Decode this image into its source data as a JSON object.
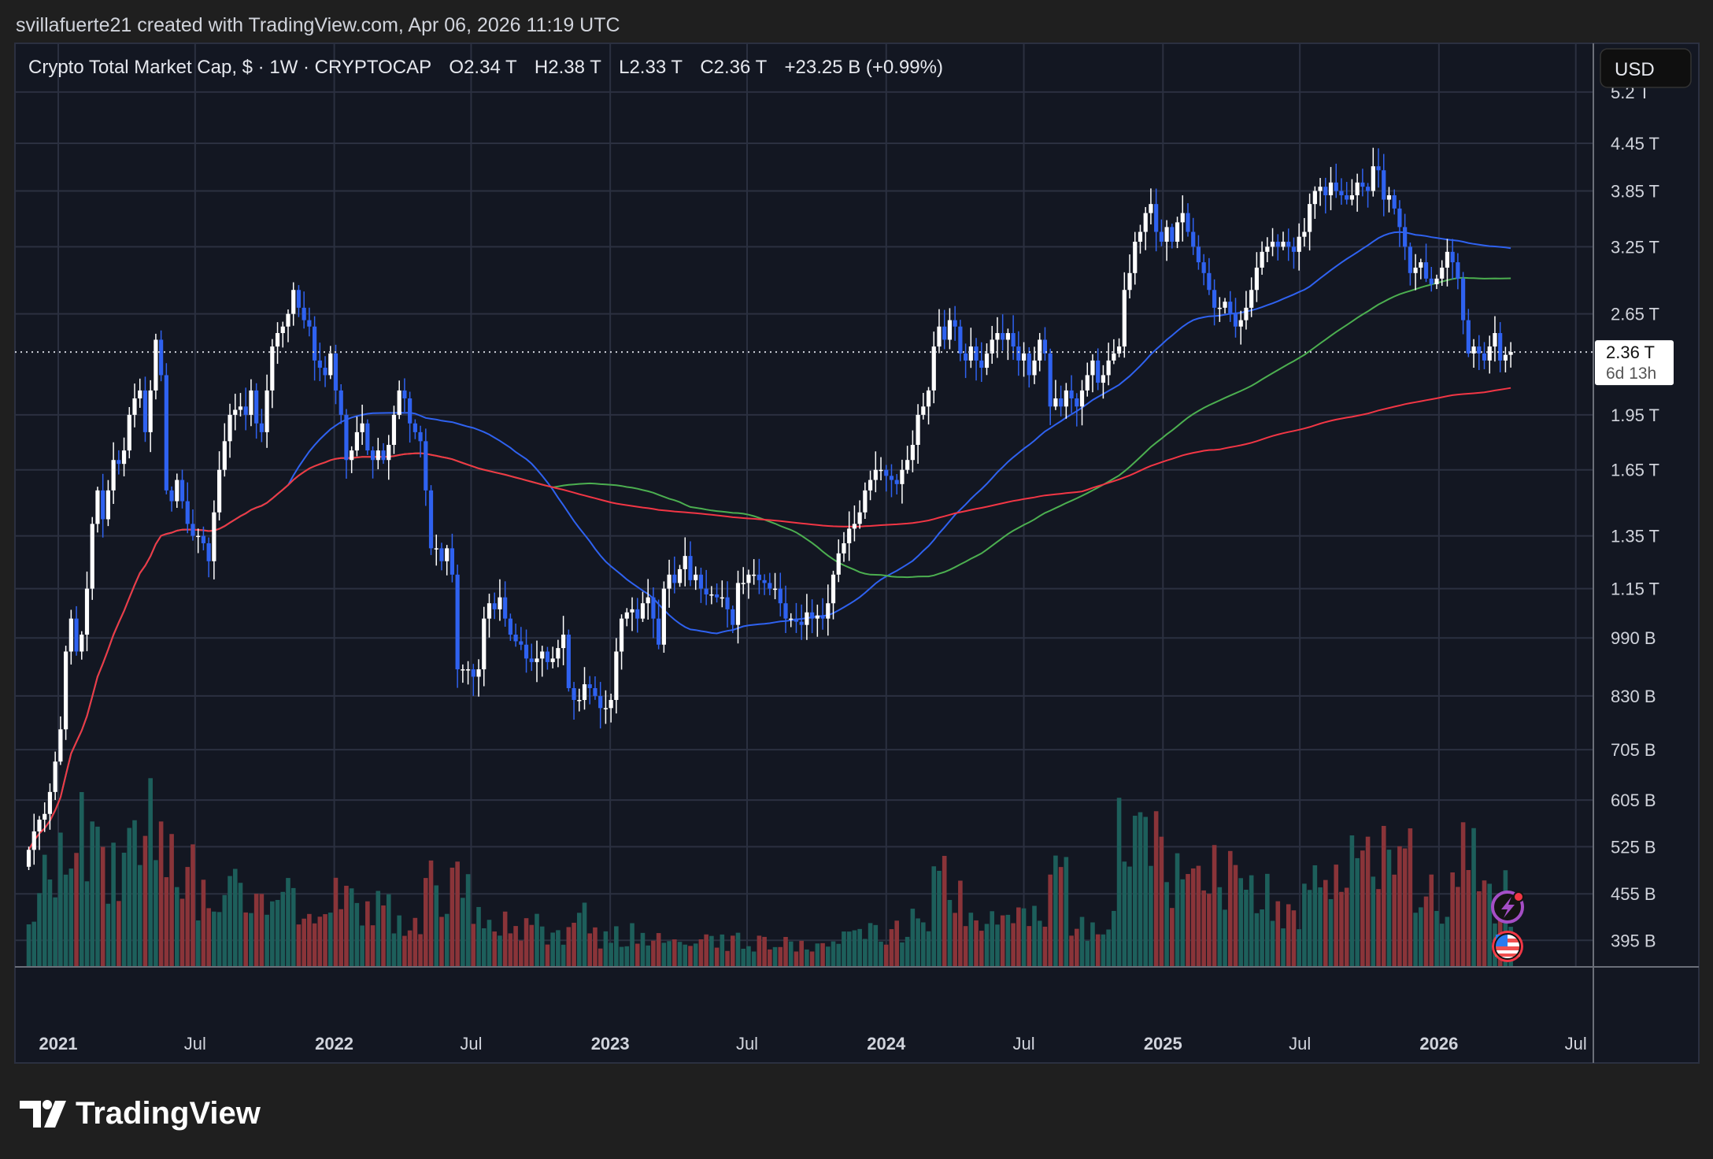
{
  "header": {
    "attribution": "svillafuerte21 created with TradingView.com, Apr 06, 2026 11:19 UTC"
  },
  "legend": {
    "symbol": "Crypto Total Market Cap, $ · 1W · CRYPTOCAP",
    "open": "O2.34 T",
    "high": "H2.38 T",
    "low": "L2.33 T",
    "close": "C2.36 T",
    "change": "+23.25 B (+0.99%)"
  },
  "currency_button": "USD",
  "last_price": {
    "value": "2.36 T",
    "countdown": "6d 13h"
  },
  "branding": {
    "logo_text": "TradingView"
  },
  "colors": {
    "background": "#1f1f1f",
    "panel": "#131722",
    "grid": "#2b3040",
    "up_candle": "#ffffff",
    "down_candle": "#2f62f0",
    "volume_up": "#1d5f5b",
    "volume_down": "#8a3439",
    "ma_blue": "#2f62f0",
    "ma_green": "#4caf50",
    "ma_red": "#f23645"
  },
  "icons": [
    "lightning-event-icon",
    "us-flag-economic-event-icon"
  ],
  "chart_data": {
    "type": "candlestick",
    "interval": "1W",
    "price_scale": "log",
    "grid": true,
    "last_date": "2026-04-06",
    "y_ticks": [
      "5.2 T",
      "4.45 T",
      "3.85 T",
      "3.25 T",
      "2.65 T",
      "1.95 T",
      "1.65 T",
      "1.35 T",
      "1.15 T",
      "990 B",
      "830 B",
      "705 B",
      "605 B",
      "525 B",
      "455 B",
      "395 B"
    ],
    "y_tick_values": [
      5.2,
      4.45,
      3.85,
      3.25,
      2.65,
      1.95,
      1.65,
      1.35,
      1.15,
      0.99,
      0.83,
      0.705,
      0.605,
      0.525,
      0.455,
      0.395
    ],
    "x_ticks": [
      {
        "label": "2021",
        "date": "2021-01-01",
        "bold": true
      },
      {
        "label": "Jul",
        "date": "2021-07-01",
        "bold": false
      },
      {
        "label": "2022",
        "date": "2022-01-01",
        "bold": true
      },
      {
        "label": "Jul",
        "date": "2022-07-01",
        "bold": false
      },
      {
        "label": "2023",
        "date": "2023-01-01",
        "bold": true
      },
      {
        "label": "Jul",
        "date": "2023-07-01",
        "bold": false
      },
      {
        "label": "2024",
        "date": "2024-01-01",
        "bold": true
      },
      {
        "label": "Jul",
        "date": "2024-07-01",
        "bold": false
      },
      {
        "label": "2025",
        "date": "2025-01-01",
        "bold": true
      },
      {
        "label": "Jul",
        "date": "2025-07-01",
        "bold": false
      },
      {
        "label": "2026",
        "date": "2026-01-01",
        "bold": true
      },
      {
        "label": "Jul",
        "date": "2026-07-01",
        "bold": false
      }
    ],
    "closes_trillions": [
      0.52,
      0.55,
      0.57,
      0.58,
      0.62,
      0.68,
      0.75,
      0.95,
      1.05,
      0.95,
      1.0,
      1.15,
      1.4,
      1.55,
      1.42,
      1.55,
      1.7,
      1.68,
      1.75,
      1.95,
      2.05,
      2.1,
      1.85,
      2.1,
      2.45,
      2.2,
      1.55,
      1.5,
      1.6,
      1.5,
      1.4,
      1.35,
      1.35,
      1.32,
      1.25,
      1.45,
      1.65,
      1.8,
      1.95,
      1.98,
      2.0,
      1.95,
      2.1,
      1.9,
      1.85,
      2.1,
      2.4,
      2.5,
      2.55,
      2.65,
      2.85,
      2.7,
      2.6,
      2.55,
      2.3,
      2.25,
      2.2,
      2.35,
      2.1,
      1.95,
      1.7,
      1.75,
      1.85,
      1.9,
      1.75,
      1.7,
      1.75,
      1.7,
      1.78,
      1.95,
      2.1,
      2.05,
      1.9,
      1.85,
      1.8,
      1.55,
      1.3,
      1.3,
      1.25,
      1.3,
      1.2,
      0.9,
      0.9,
      0.9,
      0.88,
      0.9,
      1.05,
      1.1,
      1.08,
      1.12,
      1.05,
      1.0,
      0.98,
      0.97,
      0.93,
      0.92,
      0.93,
      0.95,
      0.92,
      0.93,
      0.96,
      1.0,
      0.85,
      0.82,
      0.82,
      0.86,
      0.85,
      0.83,
      0.8,
      0.8,
      0.82,
      0.95,
      1.05,
      1.07,
      1.08,
      1.05,
      1.1,
      1.12,
      1.05,
      0.97,
      1.15,
      1.2,
      1.17,
      1.22,
      1.27,
      1.18,
      1.2,
      1.15,
      1.13,
      1.13,
      1.12,
      1.12,
      1.08,
      1.03,
      1.17,
      1.17,
      1.2,
      1.2,
      1.18,
      1.17,
      1.15,
      1.15,
      1.1,
      1.05,
      1.05,
      1.04,
      1.03,
      1.07,
      1.05,
      1.06,
      1.05,
      1.1,
      1.2,
      1.28,
      1.32,
      1.38,
      1.4,
      1.45,
      1.55,
      1.6,
      1.65,
      1.65,
      1.62,
      1.6,
      1.58,
      1.65,
      1.7,
      1.78,
      1.95,
      2.0,
      2.1,
      2.4,
      2.55,
      2.45,
      2.6,
      2.55,
      2.35,
      2.3,
      2.4,
      2.3,
      2.25,
      2.35,
      2.45,
      2.5,
      2.45,
      2.5,
      2.4,
      2.3,
      2.35,
      2.2,
      2.3,
      2.45,
      2.35,
      2.0,
      2.05,
      2.0,
      2.1,
      2.05,
      2.0,
      2.1,
      2.2,
      2.3,
      2.15,
      2.2,
      2.3,
      2.35,
      2.4,
      2.85,
      3.0,
      3.3,
      3.4,
      3.6,
      3.7,
      3.4,
      3.3,
      3.45,
      3.3,
      3.5,
      3.6,
      3.4,
      3.25,
      3.1,
      3.0,
      2.85,
      2.7,
      2.7,
      2.75,
      2.65,
      2.55,
      2.6,
      2.7,
      2.85,
      3.05,
      3.2,
      3.25,
      3.3,
      3.25,
      3.3,
      3.25,
      3.2,
      3.35,
      3.4,
      3.7,
      3.85,
      3.9,
      3.8,
      3.95,
      3.85,
      3.8,
      3.75,
      3.8,
      3.95,
      3.9,
      3.85,
      4.15,
      4.1,
      3.75,
      3.8,
      3.65,
      3.45,
      3.25,
      3.0,
      3.05,
      3.1,
      2.95,
      2.9,
      2.95,
      3.05,
      3.2,
      3.1,
      2.95,
      2.6,
      2.35,
      2.4,
      2.35,
      2.3,
      2.4,
      2.5,
      2.3,
      2.34,
      2.36
    ],
    "volume_start_month": "2020-11",
    "volume_monthly_relative": [
      30,
      35,
      55,
      55,
      40,
      45,
      60,
      45,
      30,
      30,
      35,
      30,
      28,
      25,
      28,
      25,
      22,
      20,
      35,
      32,
      22,
      18,
      18,
      15,
      22,
      12,
      14,
      13,
      15,
      12,
      10,
      11,
      10,
      10,
      8,
      10,
      12,
      14,
      14,
      18,
      35,
      28,
      20,
      18,
      20,
      35,
      18,
      20,
      55,
      50,
      35,
      45,
      40,
      35,
      30,
      25,
      50,
      45,
      40,
      50,
      45,
      30,
      30,
      45,
      30,
      25
    ],
    "moving_averages": [
      {
        "period": 50,
        "color": "#2f62f0"
      },
      {
        "period": 100,
        "color": "#4caf50"
      },
      {
        "period": 200,
        "color": "#f23645"
      }
    ]
  }
}
